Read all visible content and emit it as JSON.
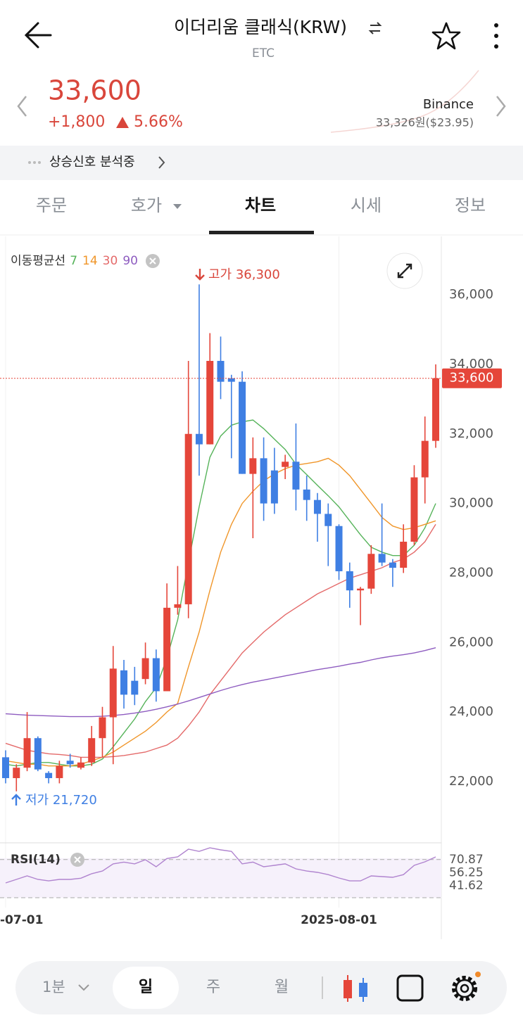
{
  "header": {
    "title": "이더리움 클래식(KRW)",
    "symbol": "ETC"
  },
  "price": {
    "current": "33,600",
    "change": "+1,800",
    "change_rate": "5.66%",
    "exchange": "Binance",
    "exchange_price": "33,326원($23.95)"
  },
  "signal": "상승신호 분석중",
  "tabs": [
    "주문",
    "호가",
    "차트",
    "시세",
    "정보"
  ],
  "active_tab": 2,
  "chart_data": {
    "type": "candlestick",
    "categories": [
      "-07-01",
      null,
      null,
      null,
      null,
      null,
      null,
      null,
      null,
      null,
      null,
      null,
      null,
      null,
      null,
      null,
      null,
      null,
      null,
      null,
      null,
      null,
      null,
      null,
      null,
      null,
      null,
      null,
      null,
      null,
      null,
      "2025-08-01",
      null,
      null,
      null,
      null,
      null,
      null,
      null,
      null,
      null
    ],
    "open": [
      22700,
      22100,
      22400,
      23250,
      22250,
      22100,
      22600,
      22400,
      22550,
      23250,
      23850,
      25200,
      24900,
      24950,
      25550,
      24600,
      27000,
      27100,
      32000,
      31700,
      34100,
      33600,
      33500,
      30850,
      31300,
      30950,
      31050,
      31200,
      30400,
      30100,
      29700,
      29350,
      28050,
      27500,
      27550,
      28550,
      28300,
      28150,
      28900,
      30750,
      31800
    ],
    "high": [
      22900,
      22500,
      24000,
      23300,
      22300,
      22600,
      22800,
      22700,
      23600,
      24150,
      25900,
      25500,
      25300,
      26000,
      25800,
      27700,
      28200,
      34100,
      36300,
      34900,
      34800,
      33700,
      33800,
      31900,
      31900,
      31600,
      31400,
      32300,
      30800,
      30300,
      30000,
      29400,
      28300,
      27600,
      28800,
      30000,
      28400,
      29400,
      31100,
      32500,
      34000
    ],
    "low": [
      21950,
      21720,
      22300,
      22300,
      21950,
      21950,
      22400,
      22350,
      22450,
      22700,
      22500,
      24100,
      24200,
      24800,
      24300,
      24600,
      26800,
      26700,
      30800,
      31700,
      33000,
      31300,
      30850,
      29000,
      29500,
      29700,
      30700,
      29800,
      29500,
      28900,
      28200,
      27800,
      27000,
      26500,
      27400,
      28200,
      27600,
      28000,
      28800,
      30000,
      31600
    ],
    "close": [
      22100,
      22400,
      23250,
      22350,
      22100,
      22450,
      22500,
      22550,
      23250,
      23850,
      25250,
      24500,
      24500,
      25550,
      24600,
      27000,
      27100,
      32000,
      31700,
      34100,
      33500,
      33500,
      30850,
      31300,
      30000,
      30000,
      31200,
      30400,
      30100,
      29700,
      29350,
      28050,
      27500,
      27550,
      28550,
      28300,
      28150,
      28900,
      30750,
      31800,
      33600
    ],
    "up_color": "#e5463a",
    "down_color": "#3f7fe3",
    "ylim": [
      20300,
      37600
    ],
    "yticks": [
      {
        "value": 22000,
        "label": "22,000"
      },
      {
        "value": 24000,
        "label": "24,000"
      },
      {
        "value": 26000,
        "label": "26,000"
      },
      {
        "value": 28000,
        "label": "28,000"
      },
      {
        "value": 30000,
        "label": "30,000"
      },
      {
        "value": 32000,
        "label": "32,000"
      },
      {
        "value": 34000,
        "label": "34,000"
      },
      {
        "value": 36000,
        "label": "36,000"
      }
    ],
    "moving_averages": {
      "label": "이동평균선",
      "series": [
        {
          "name": "7",
          "color": "#56b35a",
          "values": [
            22500,
            22450,
            22500,
            22550,
            22550,
            22500,
            22450,
            22450,
            22500,
            22650,
            23000,
            23400,
            23800,
            24300,
            24700,
            25550,
            26650,
            28300,
            29900,
            31330,
            31940,
            32250,
            32350,
            32400,
            32150,
            31850,
            31550,
            31130,
            30830,
            30520,
            30220,
            29900,
            29500,
            29100,
            28740,
            28600,
            28500,
            28500,
            28800,
            29300,
            30000
          ]
        },
        {
          "name": "14",
          "color": "#f0962a",
          "values": [
            22600,
            22550,
            22500,
            22500,
            22450,
            22450,
            22450,
            22500,
            22600,
            22700,
            22850,
            23050,
            23250,
            23450,
            23700,
            24000,
            24250,
            25300,
            26300,
            27500,
            28600,
            29400,
            30000,
            30350,
            30650,
            30850,
            31000,
            31100,
            31150,
            31200,
            31300,
            31100,
            30800,
            30400,
            30000,
            29600,
            29350,
            29250,
            29300,
            29400,
            29500
          ]
        },
        {
          "name": "30",
          "color": "#e46a6a",
          "values": [
            23100,
            23000,
            22900,
            22850,
            22800,
            22780,
            22750,
            22700,
            22700,
            22700,
            22720,
            22750,
            22800,
            22850,
            22950,
            23050,
            23250,
            23600,
            24000,
            24500,
            24900,
            25300,
            25700,
            26000,
            26300,
            26550,
            26800,
            27000,
            27200,
            27400,
            27550,
            27700,
            27850,
            27950,
            28050,
            28150,
            28300,
            28400,
            28600,
            28900,
            29400
          ]
        },
        {
          "name": "90",
          "color": "#8e5cc0",
          "values": [
            23950,
            23930,
            23910,
            23900,
            23890,
            23880,
            23870,
            23870,
            23870,
            23880,
            23900,
            23930,
            23970,
            24020,
            24080,
            24150,
            24230,
            24320,
            24420,
            24520,
            24620,
            24710,
            24790,
            24860,
            24920,
            24980,
            25040,
            25100,
            25160,
            25220,
            25270,
            25320,
            25380,
            25430,
            25500,
            25560,
            25610,
            25650,
            25700,
            25770,
            25850
          ]
        }
      ]
    },
    "high_label": "고가 36,300",
    "low_label": "저가 21,720",
    "last_price": {
      "value": 33600,
      "label": "33,600"
    },
    "rsi": {
      "label": "RSI(14)",
      "color": "#b084cf",
      "ylim": [
        25,
        88
      ],
      "yticks": [
        70.87,
        56.25,
        41.62
      ],
      "values": [
        44.7,
        48.6,
        52.6,
        48.6,
        47,
        48.6,
        48.6,
        50,
        55,
        58,
        66,
        68,
        66,
        70.7,
        62.8,
        72,
        73.8,
        82.5,
        80,
        84,
        81.7,
        80,
        66,
        68,
        62.8,
        64.4,
        66,
        60.4,
        58,
        56.5,
        54,
        50.2,
        47,
        47,
        52.6,
        51.8,
        51,
        54,
        64.4,
        68.3,
        73.8
      ]
    }
  },
  "toolbar": {
    "interval": "1분",
    "periods": [
      "일",
      "주",
      "월"
    ],
    "active_period": 0
  }
}
